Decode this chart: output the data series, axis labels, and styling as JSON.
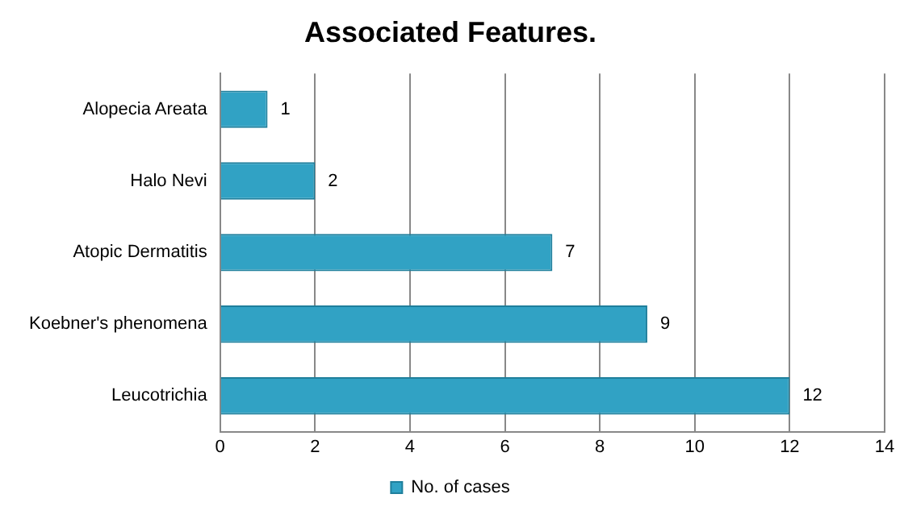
{
  "chart_data": {
    "type": "bar",
    "orientation": "horizontal",
    "title": "Associated Features.",
    "categories": [
      "Alopecia Areata",
      "Halo Nevi",
      "Atopic Dermatitis",
      "Koebner's phenomena",
      "Leucotrichia"
    ],
    "series": [
      {
        "name": "No. of cases",
        "color": "#31a2c4",
        "values": [
          1,
          2,
          7,
          9,
          12
        ]
      }
    ],
    "xlim": [
      0,
      14
    ],
    "xticks": [
      0,
      2,
      4,
      6,
      8,
      10,
      12,
      14
    ],
    "grid": "x",
    "legend": "bottom",
    "data_labels": true
  }
}
